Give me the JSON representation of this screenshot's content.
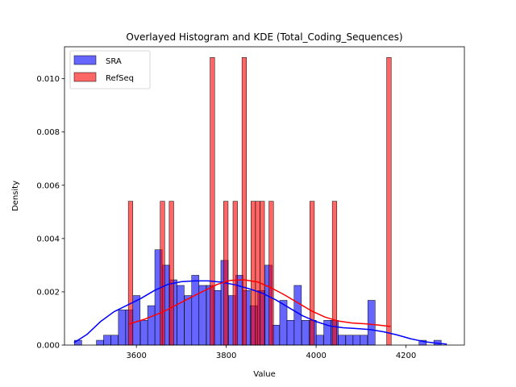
{
  "chart_data": {
    "type": "bar",
    "title": "Overlayed Histogram and KDE (Total_Coding_Sequences)",
    "xlabel": "Value",
    "ylabel": "Density",
    "xlim": [
      3440,
      4330
    ],
    "ylim": [
      0,
      0.0112
    ],
    "xticks": [
      3600,
      3800,
      4000,
      4200
    ],
    "yticks": [
      0.0,
      0.002,
      0.004,
      0.006,
      0.008,
      0.01
    ],
    "ytick_labels": [
      "0.000",
      "0.002",
      "0.004",
      "0.006",
      "0.008",
      "0.010"
    ],
    "legend_position": "upper-left",
    "series": [
      {
        "name": "SRA",
        "color": "#0000ff",
        "bin_width": 16.3,
        "bins": [
          [
            3462,
            0.00018
          ],
          [
            3511,
            0.00018
          ],
          [
            3527,
            0.00037
          ],
          [
            3543,
            0.00037
          ],
          [
            3560,
            0.00132
          ],
          [
            3576,
            0.00132
          ],
          [
            3592,
            0.00186
          ],
          [
            3609,
            0.00093
          ],
          [
            3625,
            0.00148
          ],
          [
            3641,
            0.00358
          ],
          [
            3658,
            0.003
          ],
          [
            3674,
            0.00245
          ],
          [
            3690,
            0.00224
          ],
          [
            3707,
            0.00186
          ],
          [
            3723,
            0.00262
          ],
          [
            3739,
            0.00224
          ],
          [
            3756,
            0.00224
          ],
          [
            3772,
            0.00205
          ],
          [
            3788,
            0.00318
          ],
          [
            3805,
            0.00186
          ],
          [
            3821,
            0.00262
          ],
          [
            3837,
            0.00205
          ],
          [
            3853,
            0.00148
          ],
          [
            3870,
            0.00205
          ],
          [
            3886,
            0.003
          ],
          [
            3902,
            0.00075
          ],
          [
            3919,
            0.00168
          ],
          [
            3935,
            0.00093
          ],
          [
            3951,
            0.00224
          ],
          [
            3968,
            0.00093
          ],
          [
            3984,
            0.00093
          ],
          [
            4000,
            0.00037
          ],
          [
            4017,
            0.00093
          ],
          [
            4033,
            0.00093
          ],
          [
            4049,
            0.00037
          ],
          [
            4066,
            0.00037
          ],
          [
            4082,
            0.00037
          ],
          [
            4098,
            0.00037
          ],
          [
            4115,
            0.00168
          ],
          [
            4229,
            0.00018
          ],
          [
            4262,
            0.00018
          ]
        ],
        "kde": [
          [
            3462,
            0.0001
          ],
          [
            3490,
            0.0004
          ],
          [
            3520,
            0.00088
          ],
          [
            3550,
            0.00125
          ],
          [
            3580,
            0.0015
          ],
          [
            3610,
            0.00175
          ],
          [
            3640,
            0.00205
          ],
          [
            3670,
            0.00228
          ],
          [
            3700,
            0.00238
          ],
          [
            3730,
            0.00241
          ],
          [
            3760,
            0.00241
          ],
          [
            3790,
            0.00236
          ],
          [
            3820,
            0.00226
          ],
          [
            3850,
            0.00212
          ],
          [
            3880,
            0.00195
          ],
          [
            3910,
            0.0017
          ],
          [
            3940,
            0.0014
          ],
          [
            3970,
            0.0011
          ],
          [
            4000,
            0.00088
          ],
          [
            4030,
            0.00072
          ],
          [
            4060,
            0.00065
          ],
          [
            4090,
            0.00062
          ],
          [
            4120,
            0.00058
          ],
          [
            4150,
            0.0005
          ],
          [
            4180,
            0.00038
          ],
          [
            4210,
            0.00024
          ],
          [
            4240,
            0.00013
          ],
          [
            4270,
            7e-05
          ],
          [
            4290,
            4e-05
          ]
        ]
      },
      {
        "name": "RefSeq",
        "color": "#ff0000",
        "bin_width": 10.1,
        "bins": [
          [
            3582,
            0.0054
          ],
          [
            3653,
            0.0054
          ],
          [
            3673,
            0.0054
          ],
          [
            3764,
            0.0108
          ],
          [
            3794,
            0.0054
          ],
          [
            3815,
            0.0054
          ],
          [
            3835,
            0.0108
          ],
          [
            3855,
            0.0054
          ],
          [
            3865,
            0.0054
          ],
          [
            3875,
            0.0054
          ],
          [
            3895,
            0.0054
          ],
          [
            3986,
            0.0054
          ],
          [
            4036,
            0.0054
          ],
          [
            4157,
            0.0108
          ]
        ],
        "kde": [
          [
            3585,
            0.0008
          ],
          [
            3620,
            0.00098
          ],
          [
            3660,
            0.00125
          ],
          [
            3700,
            0.0016
          ],
          [
            3740,
            0.00195
          ],
          [
            3780,
            0.00228
          ],
          [
            3810,
            0.00243
          ],
          [
            3840,
            0.00245
          ],
          [
            3870,
            0.00237
          ],
          [
            3900,
            0.00215
          ],
          [
            3930,
            0.00188
          ],
          [
            3960,
            0.00158
          ],
          [
            3990,
            0.00128
          ],
          [
            4020,
            0.00105
          ],
          [
            4050,
            0.0009
          ],
          [
            4080,
            0.00083
          ],
          [
            4110,
            0.0008
          ],
          [
            4140,
            0.00075
          ],
          [
            4165,
            0.0007
          ]
        ]
      }
    ]
  }
}
